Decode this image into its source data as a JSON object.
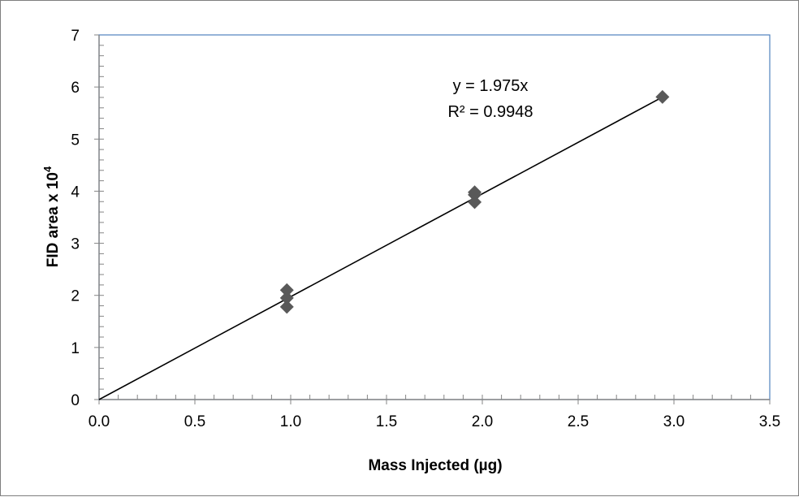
{
  "chart_data": {
    "type": "scatter",
    "xlabel": "Mass Injected (µg)",
    "ylabel": {
      "text": "FID area x 10",
      "superscript": "4"
    },
    "xlim": [
      0,
      3.5
    ],
    "ylim": [
      0,
      7
    ],
    "x_ticks": [
      "0.0",
      "0.5",
      "1.0",
      "1.5",
      "2.0",
      "2.5",
      "3.0",
      "3.5"
    ],
    "y_ticks": [
      "0",
      "1",
      "2",
      "3",
      "4",
      "5",
      "6",
      "7"
    ],
    "x_minor_step": 0.1,
    "y_minor_step": 0.2,
    "grid": false,
    "legend": "none",
    "marker": "diamond",
    "marker_color": "#595959",
    "series": [
      {
        "points": [
          {
            "x": 0.98,
            "y": 2.1
          },
          {
            "x": 0.98,
            "y": 1.95
          },
          {
            "x": 0.98,
            "y": 1.78
          },
          {
            "x": 1.96,
            "y": 3.98
          },
          {
            "x": 1.96,
            "y": 3.93
          },
          {
            "x": 1.96,
            "y": 3.79
          },
          {
            "x": 2.94,
            "y": 5.81
          }
        ]
      }
    ],
    "trendline": {
      "slope": 1.975,
      "intercept": 0,
      "x_range": [
        0,
        2.94
      ],
      "color": "#000000"
    },
    "annotations": [
      "y = 1.975x",
      "R² = 0.9948"
    ],
    "plot_border_color": "#4f81bd"
  }
}
